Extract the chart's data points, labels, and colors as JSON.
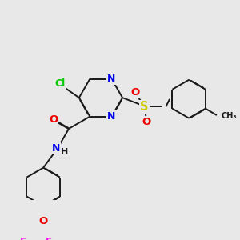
{
  "bg": "#e8e8e8",
  "bond_color": "#1a1a1a",
  "bond_lw": 1.4,
  "atom_colors": {
    "N": "#0000ee",
    "O": "#ee0000",
    "S": "#cccc00",
    "F": "#ee00ee",
    "Cl": "#00cc00",
    "C": "#1a1a1a",
    "H": "#1a1a1a"
  },
  "fs": 8.5
}
